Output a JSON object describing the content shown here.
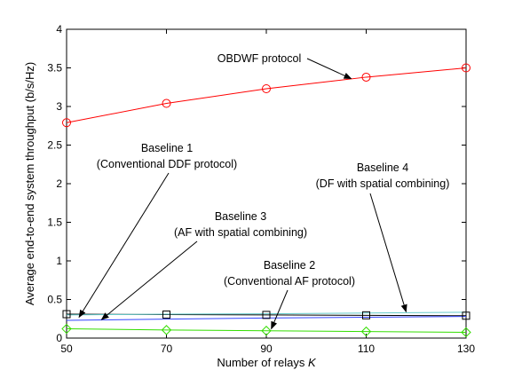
{
  "chart_data": {
    "type": "line",
    "xlabel": "Number of relays",
    "xlabel_var": "K",
    "ylabel": "Average end-to-end system throughput (b/s/Hz)",
    "xlim": [
      50,
      130
    ],
    "ylim": [
      0,
      4
    ],
    "xticks": [
      "50",
      "70",
      "90",
      "110",
      "130"
    ],
    "yticks": [
      "0",
      "0.5",
      "1",
      "1.5",
      "2",
      "2.5",
      "3",
      "3.5",
      "4"
    ],
    "grid": false,
    "x": [
      50,
      70,
      90,
      110,
      130
    ],
    "series": [
      {
        "name": "OBDWF protocol",
        "color": "#ff0000",
        "marker": "circle",
        "values": [
          2.79,
          3.04,
          3.23,
          3.38,
          3.5
        ]
      },
      {
        "name": "Baseline 1",
        "color": "#000000",
        "marker": "square",
        "values": [
          0.31,
          0.305,
          0.3,
          0.295,
          0.29
        ]
      },
      {
        "name": "Baseline 2",
        "color": "#33dd00",
        "marker": "diamond",
        "values": [
          0.12,
          0.105,
          0.095,
          0.085,
          0.075
        ]
      },
      {
        "name": "Baseline 3",
        "color": "#3344ff",
        "marker": "none",
        "values": [
          0.23,
          0.245,
          0.26,
          0.27,
          0.28
        ]
      },
      {
        "name": "Baseline 4",
        "color": "#66cccc",
        "marker": "none",
        "values": [
          0.3,
          0.31,
          0.315,
          0.325,
          0.335
        ]
      }
    ],
    "annotations": [
      {
        "id": "obdwf",
        "lines": [
          "OBDWF protocol"
        ],
        "target": [
          107,
          3.36
        ]
      },
      {
        "id": "b1",
        "lines": [
          "Baseline 1",
          "(Conventional DDF protocol)"
        ],
        "target": [
          52.5,
          0.27
        ]
      },
      {
        "id": "b3",
        "lines": [
          "Baseline 3",
          "(AF with spatial combining)"
        ],
        "target": [
          57,
          0.24
        ]
      },
      {
        "id": "b2",
        "lines": [
          "Baseline 2",
          "(Conventional AF protocol)"
        ],
        "target": [
          91,
          0.12
        ]
      },
      {
        "id": "b4",
        "lines": [
          "Baseline 4",
          "(DF with spatial combining)"
        ],
        "target": [
          118,
          0.34
        ]
      }
    ]
  }
}
